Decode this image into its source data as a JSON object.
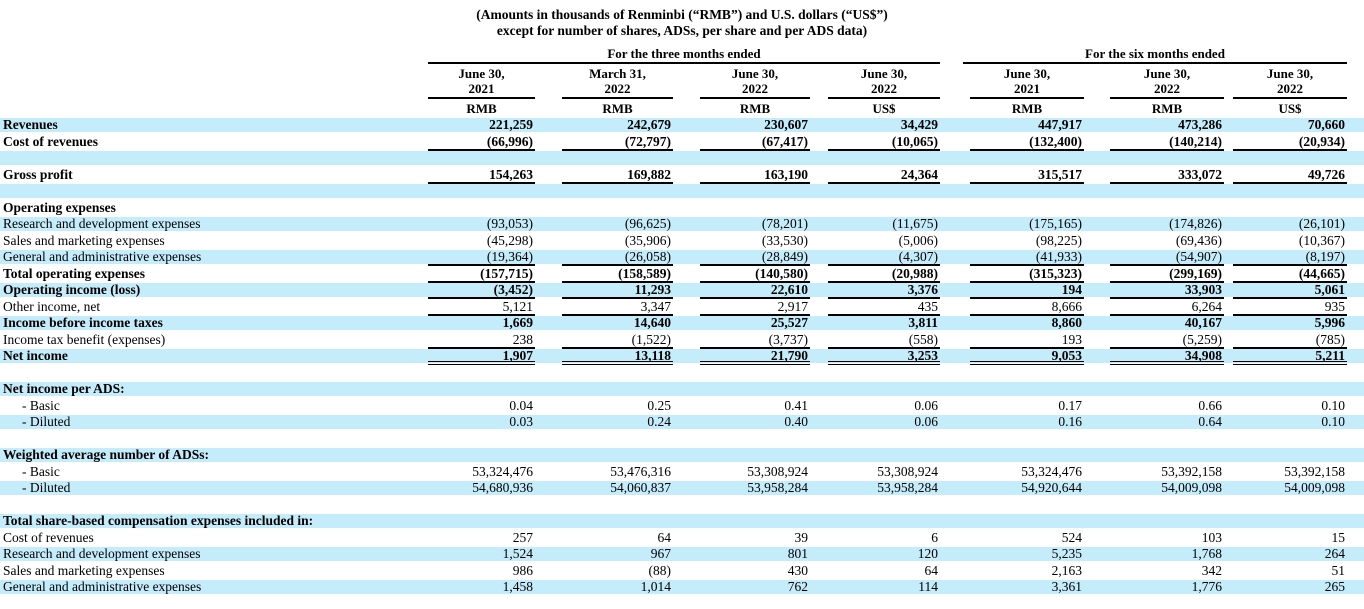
{
  "title": {
    "line1": "(Amounts in thousands of Renminbi (“RMB”) and U.S. dollars (“US$”)",
    "line2": "except for number of shares, ADSs, per share and per ADS data)"
  },
  "header": {
    "groups": [
      {
        "label": "For the three months ended",
        "columns": 4
      },
      {
        "label": "For the six months ended",
        "columns": 3
      }
    ],
    "columns": [
      {
        "date_line1": "June 30,",
        "date_line2": "2021",
        "currency": "RMB"
      },
      {
        "date_line1": "March 31,",
        "date_line2": "2022",
        "currency": "RMB"
      },
      {
        "date_line1": "June 30,",
        "date_line2": "2022",
        "currency": "RMB"
      },
      {
        "date_line1": "June 30,",
        "date_line2": "2022",
        "currency": "US$"
      },
      {
        "date_line1": "June 30,",
        "date_line2": "2021",
        "currency": "RMB"
      },
      {
        "date_line1": "June 30,",
        "date_line2": "2022",
        "currency": "RMB"
      },
      {
        "date_line1": "June 30,",
        "date_line2": "2022",
        "currency": "US$"
      }
    ]
  },
  "rows": [
    {
      "label": "Revenues",
      "bold": true,
      "bg": "blue",
      "values": [
        "221,259",
        "242,679",
        "230,607",
        "34,429",
        "447,917",
        "473,286",
        "70,660"
      ]
    },
    {
      "label": "Cost of revenues",
      "bold": true,
      "bg": "white",
      "border": "single",
      "values": [
        "(66,996)",
        "(72,797)",
        "(67,417)",
        "(10,065)",
        "(132,400)",
        "(140,214)",
        "(20,934)"
      ]
    },
    {
      "label": "",
      "bg": "blue",
      "values": []
    },
    {
      "label": "Gross profit",
      "bold": true,
      "bg": "white",
      "border": "single",
      "values": [
        "154,263",
        "169,882",
        "163,190",
        "24,364",
        "315,517",
        "333,072",
        "49,726"
      ]
    },
    {
      "label": "",
      "bg": "blue",
      "values": []
    },
    {
      "label": "Operating expenses",
      "bold": true,
      "bg": "white",
      "values": []
    },
    {
      "label": "Research and development expenses",
      "bg": "blue",
      "values": [
        "(93,053)",
        "(96,625)",
        "(78,201)",
        "(11,675)",
        "(175,165)",
        "(174,826)",
        "(26,101)"
      ]
    },
    {
      "label": "Sales and marketing expenses",
      "bg": "white",
      "values": [
        "(45,298)",
        "(35,906)",
        "(33,530)",
        "(5,006)",
        "(98,225)",
        "(69,436)",
        "(10,367)"
      ]
    },
    {
      "label": "General and administrative expenses",
      "bg": "blue",
      "border": "single",
      "values": [
        "(19,364)",
        "(26,058)",
        "(28,849)",
        "(4,307)",
        "(41,933)",
        "(54,907)",
        "(8,197)"
      ]
    },
    {
      "label": "Total operating expenses",
      "bold": true,
      "bg": "white",
      "border": "single",
      "values": [
        "(157,715)",
        "(158,589)",
        "(140,580)",
        "(20,988)",
        "(315,323)",
        "(299,169)",
        "(44,665)"
      ]
    },
    {
      "label": "Operating income (loss)",
      "bold": true,
      "bg": "blue",
      "border": "single",
      "values": [
        "(3,452)",
        "11,293",
        "22,610",
        "3,376",
        "194",
        "33,903",
        "5,061"
      ]
    },
    {
      "label": "Other income, net",
      "bg": "white",
      "border": "single",
      "values": [
        "5,121",
        "3,347",
        "2,917",
        "435",
        "8,666",
        "6,264",
        "935"
      ]
    },
    {
      "label": "Income before income taxes",
      "bold": true,
      "bg": "blue",
      "values": [
        "1,669",
        "14,640",
        "25,527",
        "3,811",
        "8,860",
        "40,167",
        "5,996"
      ]
    },
    {
      "label": "Income tax benefit (expenses)",
      "bg": "white",
      "border": "single",
      "values": [
        "238",
        "(1,522)",
        "(3,737)",
        "(558)",
        "193",
        "(5,259)",
        "(785)"
      ]
    },
    {
      "label": "Net income",
      "bold": true,
      "bg": "blue",
      "border": "double",
      "values": [
        "1,907",
        "13,118",
        "21,790",
        "3,253",
        "9,053",
        "34,908",
        "5,211"
      ]
    },
    {
      "label": "",
      "bg": "white",
      "values": []
    },
    {
      "label": "Net income per ADS:",
      "bold": true,
      "bg": "blue",
      "values": []
    },
    {
      "label": "- Basic",
      "indent": true,
      "bg": "white",
      "values": [
        "0.04",
        "0.25",
        "0.41",
        "0.06",
        "0.17",
        "0.66",
        "0.10"
      ]
    },
    {
      "label": "- Diluted",
      "indent": true,
      "bg": "blue",
      "values": [
        "0.03",
        "0.24",
        "0.40",
        "0.06",
        "0.16",
        "0.64",
        "0.10"
      ]
    },
    {
      "label": "",
      "bg": "white",
      "values": []
    },
    {
      "label": "Weighted average number of ADSs:",
      "bold": true,
      "bg": "blue",
      "values": []
    },
    {
      "label": "- Basic",
      "indent": true,
      "bg": "white",
      "values": [
        "53,324,476",
        "53,476,316",
        "53,308,924",
        "53,308,924",
        "53,324,476",
        "53,392,158",
        "53,392,158"
      ]
    },
    {
      "label": "- Diluted",
      "indent": true,
      "bg": "blue",
      "values": [
        "54,680,936",
        "54,060,837",
        "53,958,284",
        "53,958,284",
        "54,920,644",
        "54,009,098",
        "54,009,098"
      ]
    },
    {
      "label": "",
      "bg": "white",
      "values": []
    },
    {
      "label": "Total share-based compensation expenses included in:",
      "bold": true,
      "bg": "blue",
      "values": []
    },
    {
      "label": "Cost of revenues",
      "bg": "white",
      "values": [
        "257",
        "64",
        "39",
        "6",
        "524",
        "103",
        "15"
      ]
    },
    {
      "label": "Research and development expenses",
      "bg": "blue",
      "values": [
        "1,524",
        "967",
        "801",
        "120",
        "5,235",
        "1,768",
        "264"
      ]
    },
    {
      "label": "Sales and marketing expenses",
      "bg": "white",
      "values": [
        "986",
        "(88)",
        "430",
        "64",
        "2,163",
        "342",
        "51"
      ]
    },
    {
      "label": "General and administrative expenses",
      "bg": "blue",
      "values": [
        "1,458",
        "1,014",
        "762",
        "114",
        "3,361",
        "1,776",
        "265"
      ]
    }
  ],
  "colors": {
    "stripe_blue": "#c5ecfb",
    "text": "#000000",
    "rule": "#000000"
  }
}
